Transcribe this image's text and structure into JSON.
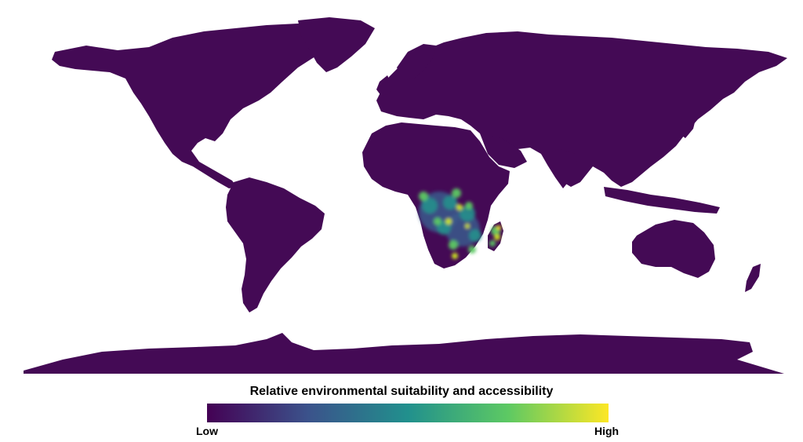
{
  "map": {
    "land_color": "#440a55",
    "background_color": "#ffffff",
    "projection": "equirectangular world",
    "highlight_region": "southern Africa and Madagascar"
  },
  "legend": {
    "title": "Relative environmental suitability and accessibility",
    "low_label": "Low",
    "high_label": "High",
    "colormap": [
      "#440154",
      "#3b528b",
      "#21908d",
      "#5dc963",
      "#fde725"
    ]
  }
}
